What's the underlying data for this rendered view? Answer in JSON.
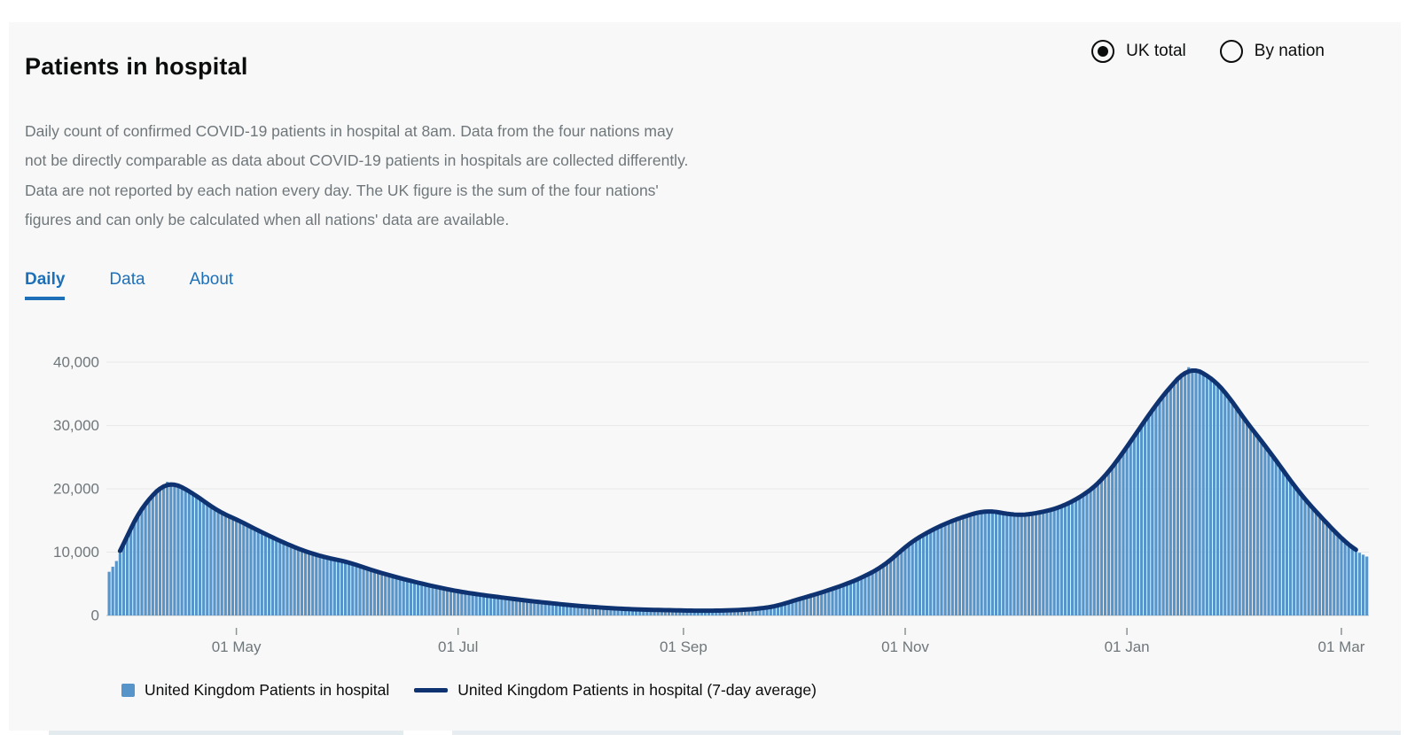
{
  "header": {
    "title": "Patients in hospital"
  },
  "view_toggle": {
    "options": [
      {
        "label": "UK total",
        "selected": true
      },
      {
        "label": "By nation",
        "selected": false
      }
    ]
  },
  "description": {
    "text": "Daily count of confirmed COVID-19 patients in hospital at 8am. Data from the four nations may not be directly comparable as data about COVID-19 patients in hospitals are collected differently. Data are not reported by each nation every day. The UK figure is the sum of the four nations' figures and can only be calculated when all nations' data are available."
  },
  "tabs": [
    {
      "label": "Daily",
      "active": true
    },
    {
      "label": "Data",
      "active": false
    },
    {
      "label": "About",
      "active": false
    }
  ],
  "chart_data": {
    "type": "bar",
    "title": "Patients in hospital",
    "xlabel": "",
    "ylabel": "",
    "x_start_date": "2020-03-27",
    "x_end_date": "2021-03-08",
    "total_days": 347,
    "ylim": [
      0,
      40000
    ],
    "grid": "horizontal",
    "legend_position": "bottom",
    "y_ticks": [
      {
        "value": 0,
        "label": "0"
      },
      {
        "value": 10000,
        "label": "10,000"
      },
      {
        "value": 20000,
        "label": "20,000"
      },
      {
        "value": 30000,
        "label": "30,000"
      },
      {
        "value": 40000,
        "label": "40,000"
      }
    ],
    "x_ticks": [
      {
        "day": 35,
        "label": "01 May"
      },
      {
        "day": 96,
        "label": "01 Jul"
      },
      {
        "day": 158,
        "label": "01 Sep"
      },
      {
        "day": 219,
        "label": "01 Nov"
      },
      {
        "day": 280,
        "label": "01 Jan"
      },
      {
        "day": 339,
        "label": "01 Mar"
      }
    ],
    "series": [
      {
        "name": "United Kingdom Patients in hospital",
        "type": "bar",
        "color": "#5694ca",
        "control_points": [
          [
            0,
            6900
          ],
          [
            1,
            7700
          ],
          [
            2,
            8600
          ],
          [
            3,
            9800
          ],
          [
            4,
            11300
          ],
          [
            5,
            12800
          ],
          [
            6,
            14100
          ],
          [
            8,
            16100
          ],
          [
            10,
            17800
          ],
          [
            12,
            19100
          ],
          [
            14,
            20200
          ],
          [
            16,
            21100
          ],
          [
            18,
            20900
          ],
          [
            20,
            20300
          ],
          [
            23,
            19300
          ],
          [
            26,
            18100
          ],
          [
            30,
            16400
          ],
          [
            35,
            15200
          ],
          [
            40,
            13700
          ],
          [
            45,
            12300
          ],
          [
            50,
            11000
          ],
          [
            55,
            9900
          ],
          [
            60,
            9100
          ],
          [
            66,
            8400
          ],
          [
            72,
            7200
          ],
          [
            78,
            6200
          ],
          [
            84,
            5300
          ],
          [
            90,
            4500
          ],
          [
            96,
            3800
          ],
          [
            103,
            3200
          ],
          [
            110,
            2700
          ],
          [
            117,
            2200
          ],
          [
            124,
            1800
          ],
          [
            127,
            1600
          ],
          [
            134,
            1300
          ],
          [
            141,
            1050
          ],
          [
            148,
            900
          ],
          [
            155,
            820
          ],
          [
            160,
            760
          ],
          [
            165,
            740
          ],
          [
            170,
            790
          ],
          [
            175,
            900
          ],
          [
            180,
            1150
          ],
          [
            184,
            1500
          ],
          [
            188,
            2300
          ],
          [
            193,
            3100
          ],
          [
            198,
            4000
          ],
          [
            203,
            5000
          ],
          [
            208,
            6200
          ],
          [
            213,
            7800
          ],
          [
            216,
            9200
          ],
          [
            219,
            10900
          ],
          [
            222,
            12100
          ],
          [
            226,
            13400
          ],
          [
            230,
            14500
          ],
          [
            234,
            15400
          ],
          [
            238,
            16100
          ],
          [
            241,
            16600
          ],
          [
            245,
            16300
          ],
          [
            249,
            15800
          ],
          [
            252,
            15900
          ],
          [
            255,
            16100
          ],
          [
            262,
            17100
          ],
          [
            269,
            19300
          ],
          [
            273,
            21300
          ],
          [
            276,
            23400
          ],
          [
            280,
            26600
          ],
          [
            284,
            30000
          ],
          [
            288,
            33300
          ],
          [
            292,
            36200
          ],
          [
            295,
            38000
          ],
          [
            297,
            39200
          ],
          [
            300,
            38700
          ],
          [
            303,
            37600
          ],
          [
            307,
            35500
          ],
          [
            311,
            32000
          ],
          [
            315,
            29000
          ],
          [
            319,
            26100
          ],
          [
            323,
            22900
          ],
          [
            327,
            19700
          ],
          [
            331,
            17000
          ],
          [
            335,
            14600
          ],
          [
            339,
            12100
          ],
          [
            342,
            10700
          ],
          [
            344,
            9900
          ],
          [
            346,
            9300
          ]
        ]
      },
      {
        "name": "United Kingdom Patients in hospital (7-day average)",
        "type": "line",
        "color": "#0e3370",
        "derived": "7-day centered moving average of the bar series"
      }
    ]
  },
  "colors": {
    "accent_blue": "#1d70b8",
    "bar_blue": "#5694ca",
    "line_navy": "#0e3370",
    "text_dark": "#0b0c0c",
    "text_secondary": "#6f777b",
    "card_background": "#f8f8f8",
    "gridline": "#e7e8e8"
  }
}
